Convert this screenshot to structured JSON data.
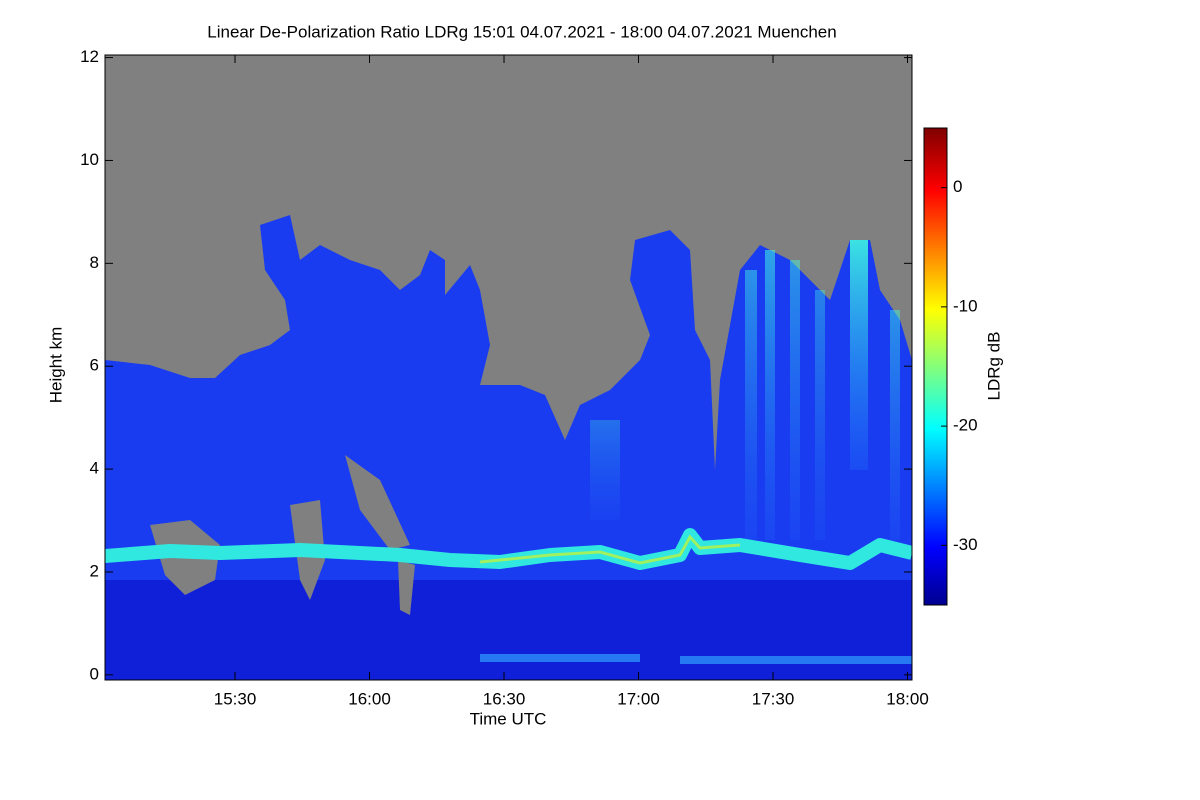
{
  "chart_data": {
    "type": "heatmap",
    "title": "Linear De-Polarization Ratio LDRg   15:01 04.07.2021 - 18:00 04.07.2021 Muenchen",
    "xlabel": "Time UTC",
    "ylabel": "Height km",
    "xlim": [
      901,
      1081
    ],
    "ylim": [
      -0.1,
      12.05
    ],
    "xticks": [
      {
        "value": 930,
        "label": "15:30"
      },
      {
        "value": 960,
        "label": "16:00"
      },
      {
        "value": 990,
        "label": "16:30"
      },
      {
        "value": 1020,
        "label": "17:00"
      },
      {
        "value": 1050,
        "label": "17:30"
      },
      {
        "value": 1080,
        "label": "18:00"
      }
    ],
    "yticks": [
      0,
      2,
      4,
      6,
      8,
      10,
      12
    ],
    "colorbar": {
      "label": "LDRg dB",
      "clim": [
        -35,
        5
      ],
      "ticks": [
        -30,
        -20,
        -10,
        0
      ]
    }
  }
}
